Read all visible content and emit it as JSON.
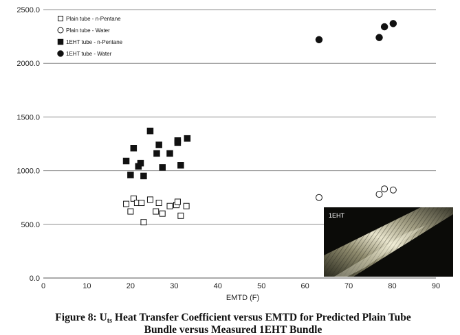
{
  "chart_data": {
    "type": "scatter",
    "xlabel": "EMTD (F)",
    "ylabel": "",
    "xlim": [
      0,
      90
    ],
    "ylim": [
      0,
      2500
    ],
    "x_ticks": [
      "0",
      "10",
      "20",
      "30",
      "40",
      "50",
      "60",
      "70",
      "80",
      "90"
    ],
    "y_ticks": [
      "0.0",
      "500.0",
      "1000.0",
      "1500.0",
      "2000.0",
      "2500.0"
    ],
    "grid": "horizontal",
    "legend_position": "top-left",
    "series": [
      {
        "name": "Plain tube - n-Pentane",
        "marker": "open-square",
        "color": "#111111",
        "points": [
          [
            19,
            690
          ],
          [
            20,
            620
          ],
          [
            20.7,
            740
          ],
          [
            21.5,
            700
          ],
          [
            22.5,
            700
          ],
          [
            23,
            520
          ],
          [
            24.5,
            730
          ],
          [
            25.8,
            620
          ],
          [
            26.5,
            700
          ],
          [
            27.3,
            600
          ],
          [
            29,
            670
          ],
          [
            30.5,
            680
          ],
          [
            30.8,
            710
          ],
          [
            31.5,
            580
          ],
          [
            32.8,
            670
          ]
        ]
      },
      {
        "name": "Plain tube - Water",
        "marker": "open-circle",
        "color": "#111111",
        "points": [
          [
            63.2,
            750
          ],
          [
            77,
            780
          ],
          [
            78.2,
            830
          ],
          [
            80.2,
            820
          ]
        ]
      },
      {
        "name": "1EHT tube - n-Pentane",
        "marker": "filled-square",
        "color": "#111111",
        "points": [
          [
            19,
            1090
          ],
          [
            20,
            960
          ],
          [
            20.7,
            1210
          ],
          [
            21.8,
            1040
          ],
          [
            22.3,
            1070
          ],
          [
            23,
            950
          ],
          [
            24.5,
            1370
          ],
          [
            26,
            1160
          ],
          [
            26.5,
            1240
          ],
          [
            27.3,
            1030
          ],
          [
            29,
            1160
          ],
          [
            30.8,
            1260
          ],
          [
            30.8,
            1280
          ],
          [
            31.5,
            1050
          ],
          [
            33,
            1300
          ]
        ]
      },
      {
        "name": "1EHT tube - Water",
        "marker": "filled-circle",
        "color": "#111111",
        "points": [
          [
            63.2,
            2220
          ],
          [
            77,
            2240
          ],
          [
            78.2,
            2340
          ],
          [
            80.2,
            2370
          ]
        ]
      }
    ]
  },
  "inset": {
    "label": "1EHT"
  },
  "caption": {
    "prefix": "Figure 8: U",
    "subscript": "ts",
    "suffix": " Heat Transfer Coefficient versus EMTD for Predicted Plain Tube",
    "line2": "Bundle versus Measured 1EHT Bundle"
  }
}
